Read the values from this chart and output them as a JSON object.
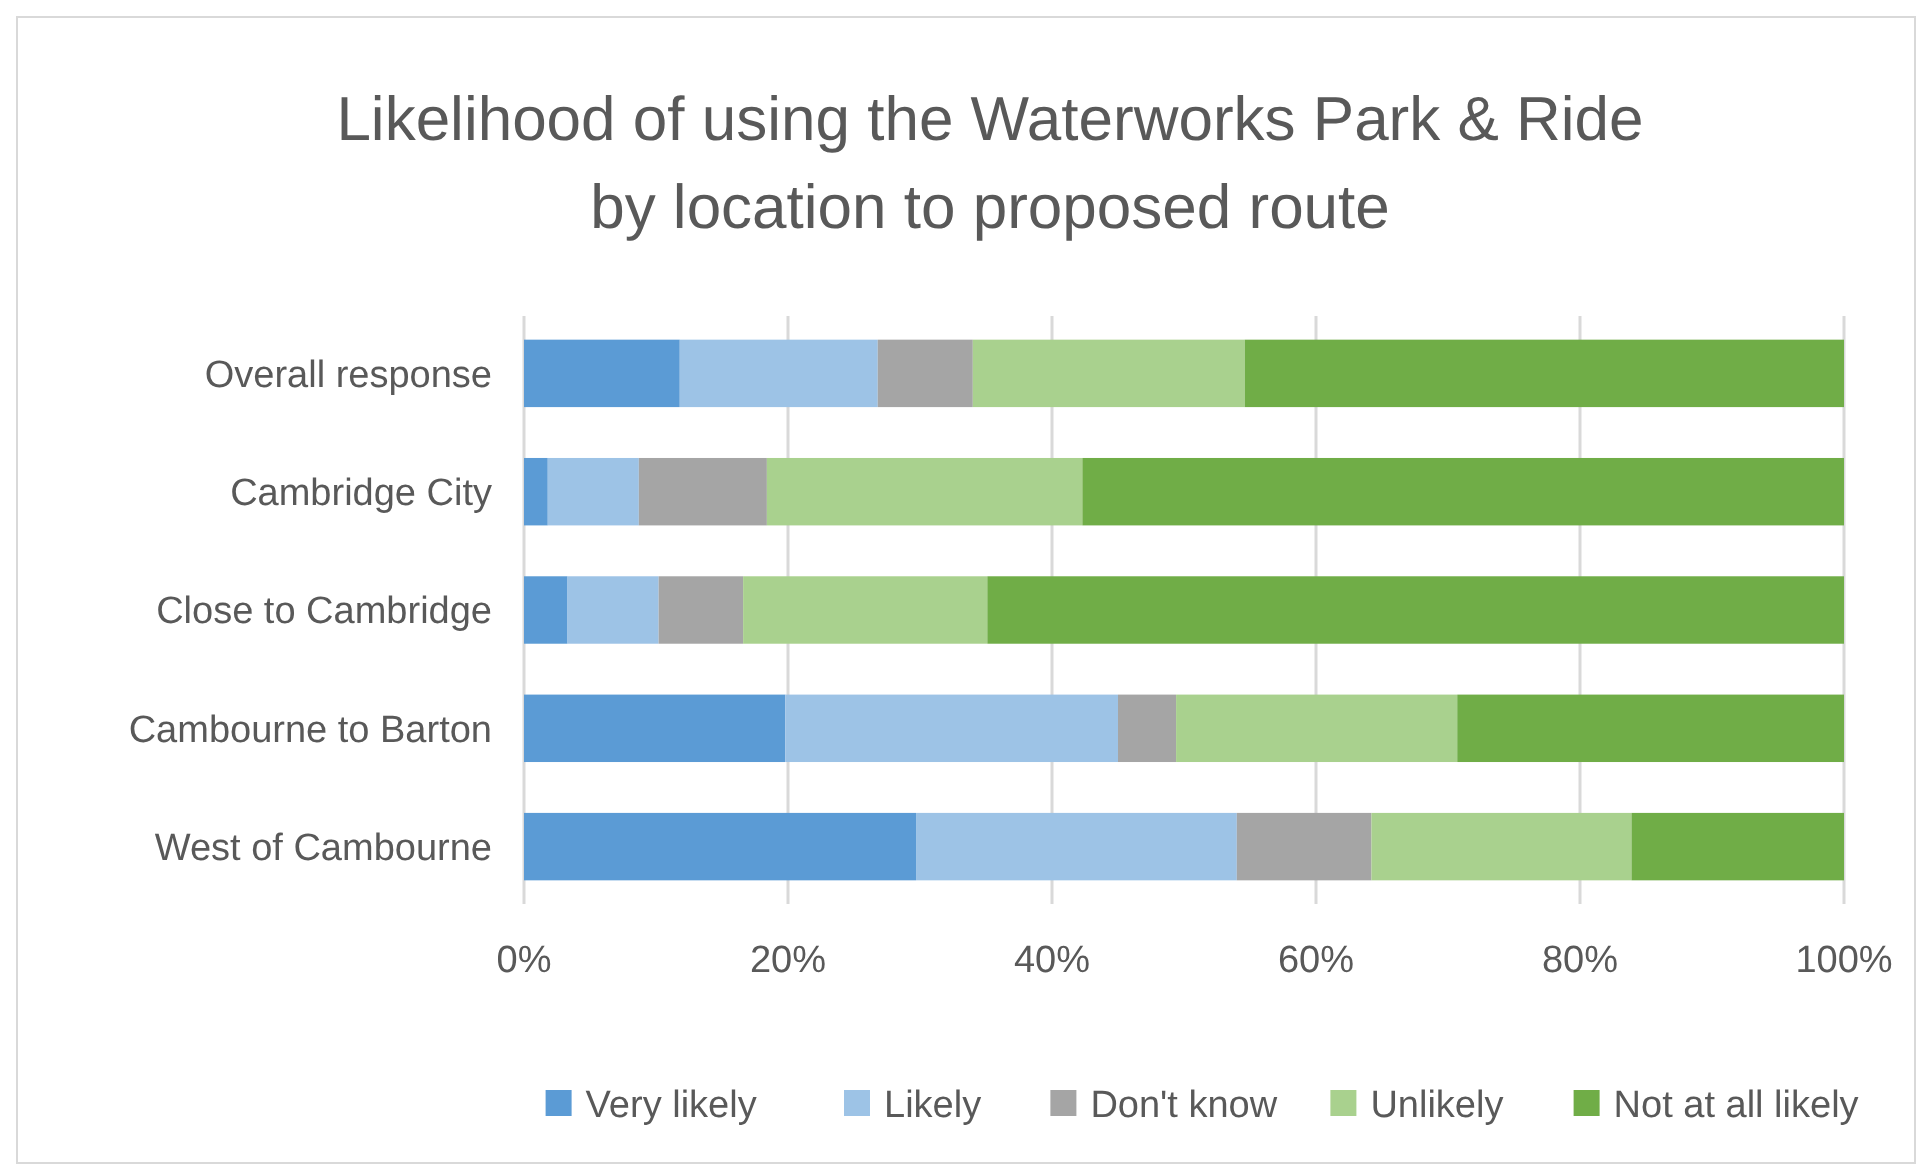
{
  "chart_data": {
    "type": "bar",
    "orientation": "horizontal",
    "stacked": true,
    "title": "Likelihood of using the Waterworks Park & Ride by location to proposed route",
    "categories": [
      "Overall response",
      "Cambridge City",
      "Close to Cambridge",
      "Cambourne to Barton",
      "West of Cambourne"
    ],
    "series": [
      {
        "name": "Very likely",
        "color": "#5b9bd5",
        "values": [
          11.8,
          1.8,
          3.3,
          19.8,
          29.7
        ]
      },
      {
        "name": "Likely",
        "color": "#9dc3e6",
        "values": [
          15.0,
          6.9,
          6.9,
          25.2,
          24.3
        ]
      },
      {
        "name": "Don't know",
        "color": "#a5a5a5",
        "values": [
          7.2,
          9.7,
          6.4,
          4.4,
          10.2
        ]
      },
      {
        "name": "Unlikely",
        "color": "#a9d18e",
        "values": [
          20.6,
          23.9,
          18.5,
          21.3,
          19.7
        ]
      },
      {
        "name": "Not at all likely",
        "color": "#70ad47",
        "values": [
          45.4,
          57.7,
          64.9,
          29.3,
          16.1
        ]
      }
    ],
    "xlim": [
      0,
      100
    ],
    "xticks": [
      {
        "value": 0,
        "label": "0%"
      },
      {
        "value": 20,
        "label": "20%"
      },
      {
        "value": 40,
        "label": "40%"
      },
      {
        "value": 60,
        "label": "60%"
      },
      {
        "value": 80,
        "label": "80%"
      },
      {
        "value": 100,
        "label": "100%"
      }
    ],
    "grid": "x",
    "legend": "bottom"
  }
}
